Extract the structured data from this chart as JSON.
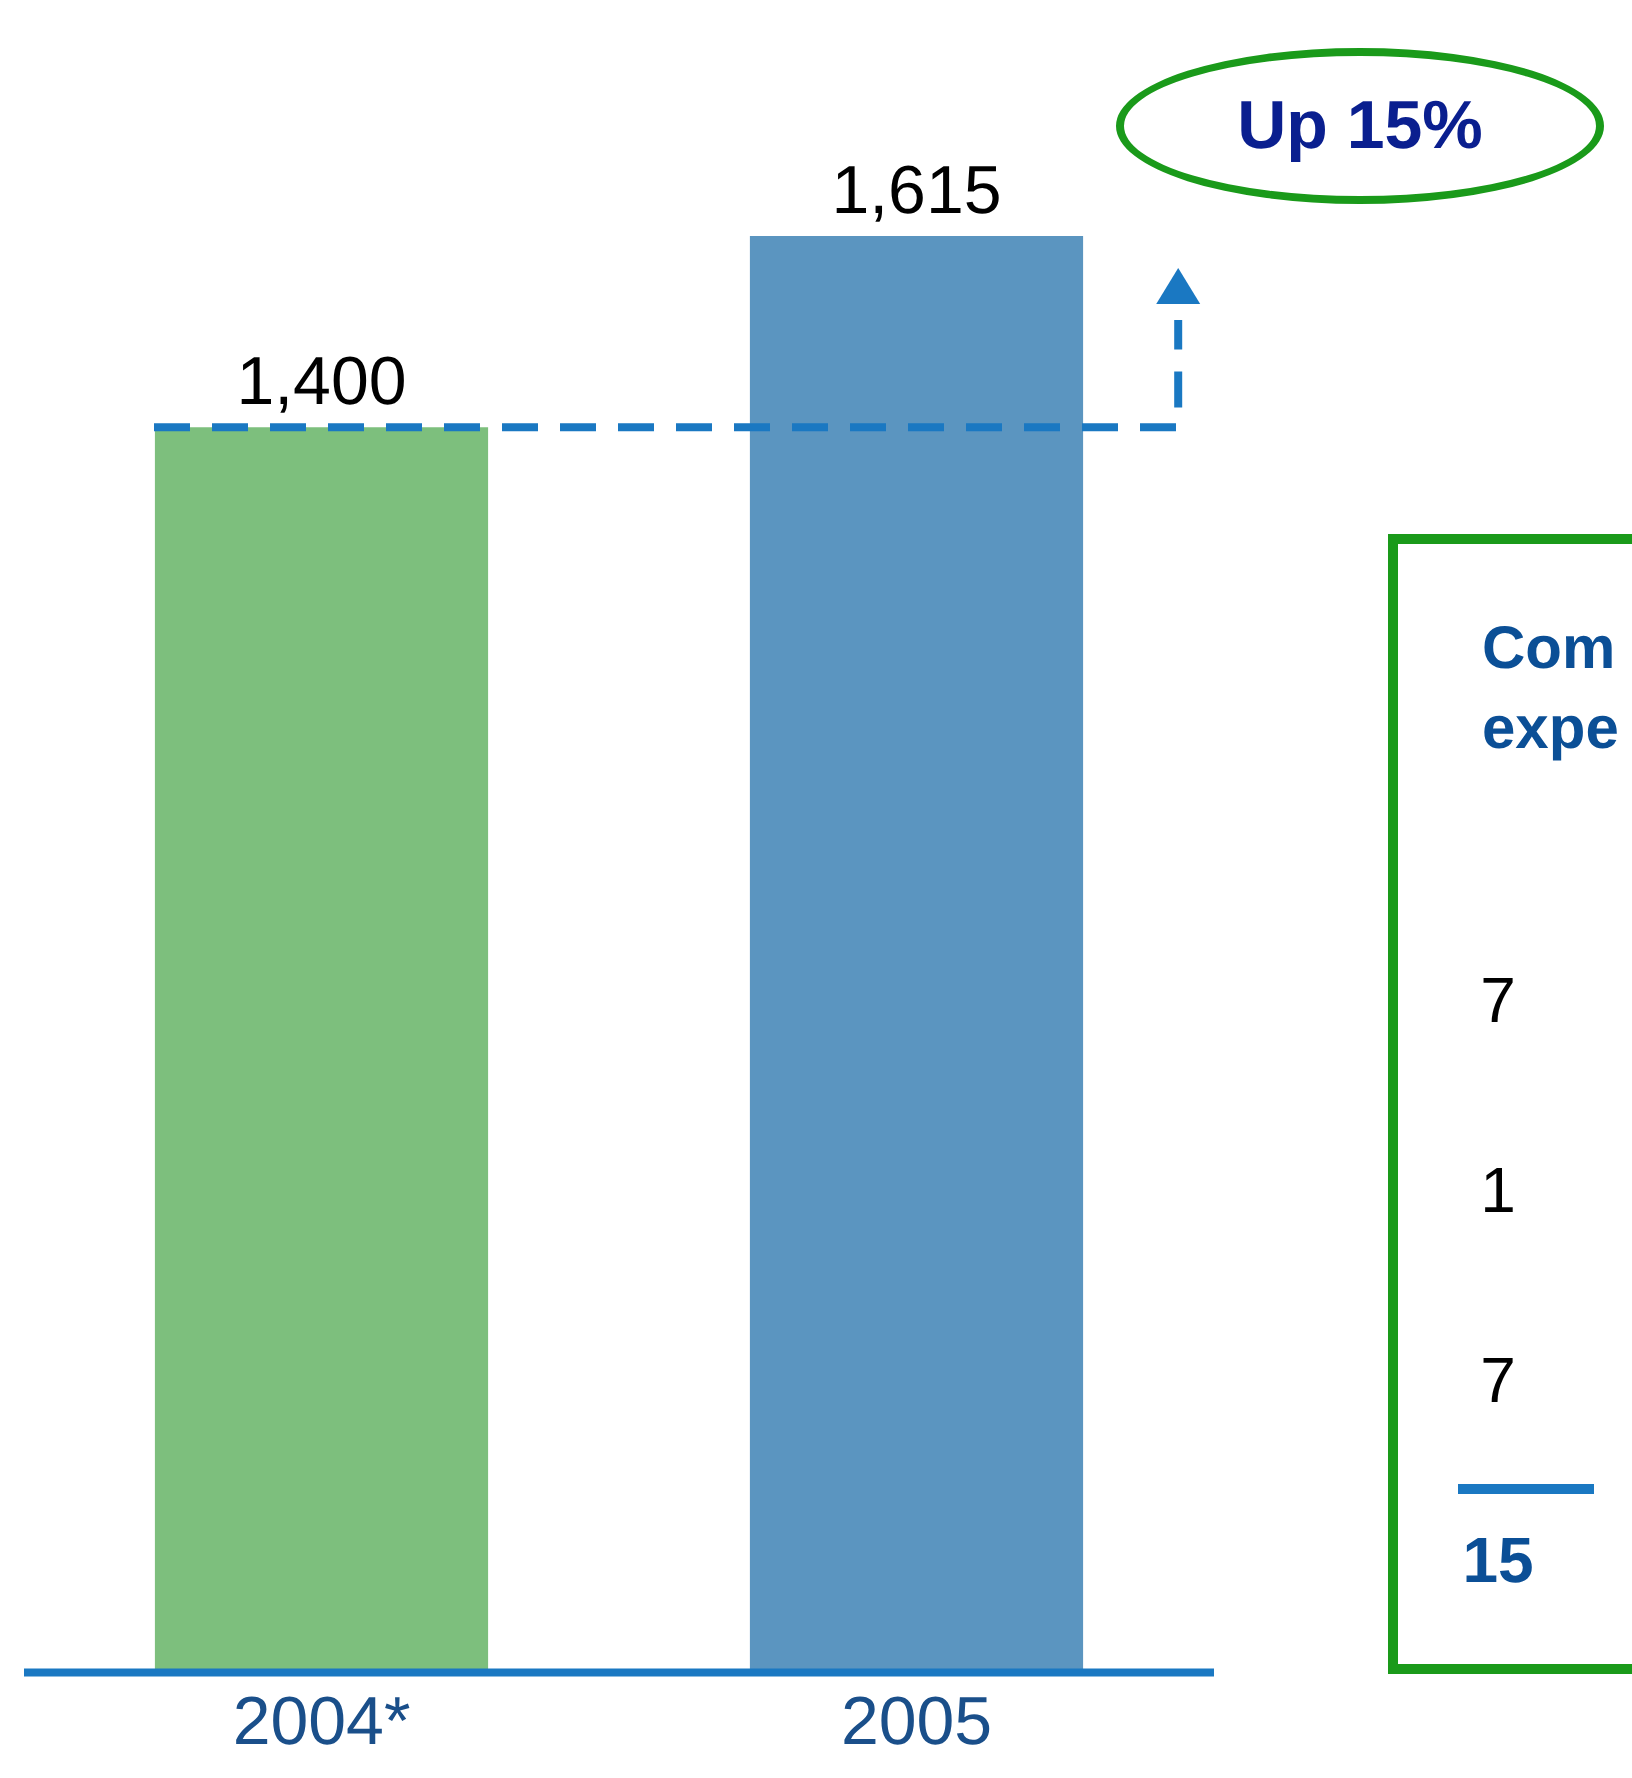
{
  "chart_data": {
    "type": "bar",
    "categories": [
      "2004*",
      "2005"
    ],
    "values": [
      1400,
      1615
    ],
    "colors": [
      "#7dbf7d",
      "#5b95c0"
    ],
    "value_labels": [
      "1,400",
      "1,615"
    ],
    "annotations": [
      "Up 15%",
      "Com",
      "expe",
      "7",
      "1",
      "7",
      "15"
    ],
    "grid": false,
    "legend": false
  }
}
